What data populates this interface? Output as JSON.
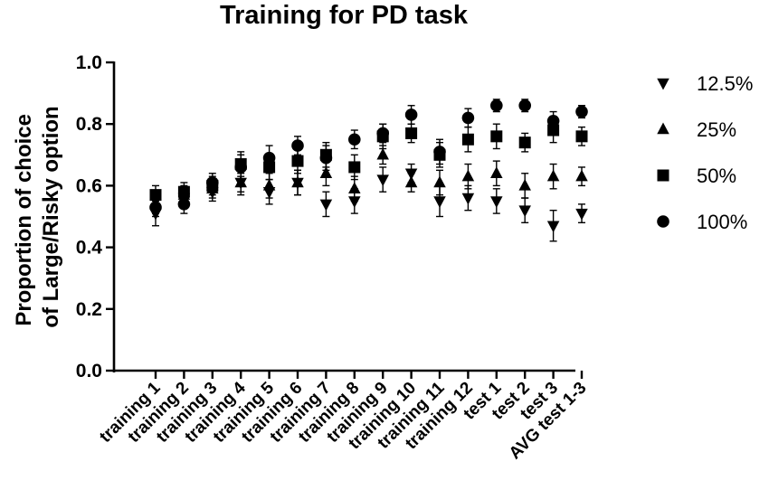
{
  "chart_data": {
    "type": "scatter",
    "title": "Training for PD task",
    "ylabel_lines": [
      "Proportion of choice",
      "of Large/Risky option"
    ],
    "ylim": [
      0,
      1.0
    ],
    "yticks": [
      "0.0",
      "0.2",
      "0.4",
      "0.6",
      "0.8",
      "1.0"
    ],
    "yticks_values": [
      0,
      0.2,
      0.4,
      0.6,
      0.8,
      1.0
    ],
    "categories": [
      "training 1",
      "training 2",
      "training 3",
      "training 4",
      "training 5",
      "training 6",
      "training 7",
      "training 8",
      "training 9",
      "training 10",
      "training 11",
      "training 12",
      "test 1",
      "test 2",
      "test 3",
      "AVG test 1-3"
    ],
    "legend_position": "right",
    "series": [
      {
        "name": "12.5%",
        "marker": "triangle-down",
        "values": [
          0.51,
          0.56,
          0.58,
          0.61,
          0.58,
          0.61,
          0.54,
          0.55,
          0.62,
          0.64,
          0.55,
          0.56,
          0.55,
          0.52,
          0.47,
          0.51
        ],
        "errors": [
          0.04,
          0.03,
          0.03,
          0.03,
          0.04,
          0.04,
          0.04,
          0.04,
          0.04,
          0.03,
          0.05,
          0.04,
          0.04,
          0.04,
          0.05,
          0.03
        ]
      },
      {
        "name": "25%",
        "marker": "triangle-up",
        "values": [
          0.54,
          0.57,
          0.59,
          0.61,
          0.6,
          0.61,
          0.64,
          0.59,
          0.7,
          0.61,
          0.61,
          0.63,
          0.64,
          0.6,
          0.63,
          0.63
        ],
        "errors": [
          0.03,
          0.03,
          0.03,
          0.04,
          0.04,
          0.04,
          0.04,
          0.04,
          0.03,
          0.03,
          0.04,
          0.04,
          0.04,
          0.04,
          0.04,
          0.03
        ]
      },
      {
        "name": "50%",
        "marker": "square",
        "values": [
          0.57,
          0.58,
          0.6,
          0.67,
          0.66,
          0.68,
          0.7,
          0.66,
          0.76,
          0.77,
          0.7,
          0.75,
          0.76,
          0.74,
          0.78,
          0.76
        ],
        "errors": [
          0.03,
          0.03,
          0.03,
          0.04,
          0.04,
          0.04,
          0.04,
          0.04,
          0.04,
          0.03,
          0.04,
          0.04,
          0.04,
          0.03,
          0.04,
          0.03
        ]
      },
      {
        "name": "100%",
        "marker": "circle",
        "values": [
          0.53,
          0.54,
          0.61,
          0.66,
          0.69,
          0.73,
          0.69,
          0.75,
          0.77,
          0.83,
          0.71,
          0.82,
          0.86,
          0.86,
          0.81,
          0.84
        ],
        "errors": [
          0.03,
          0.03,
          0.03,
          0.04,
          0.04,
          0.03,
          0.04,
          0.03,
          0.03,
          0.03,
          0.04,
          0.03,
          0.02,
          0.02,
          0.03,
          0.02
        ]
      }
    ]
  }
}
